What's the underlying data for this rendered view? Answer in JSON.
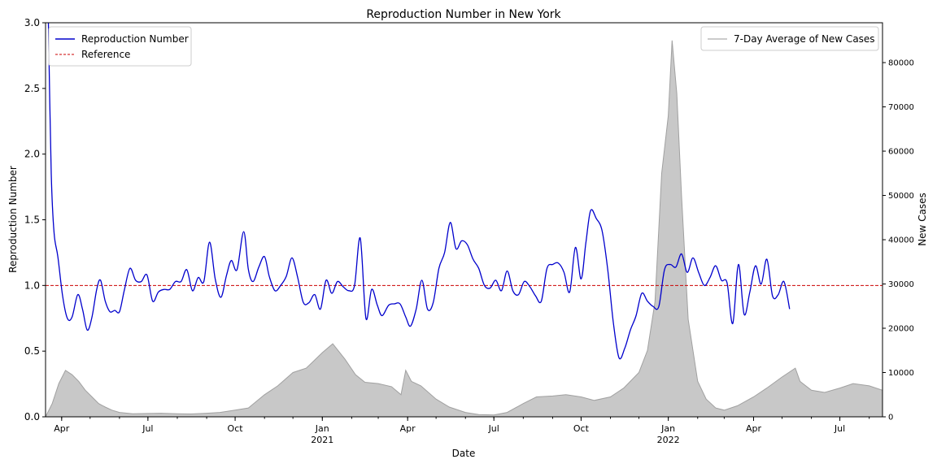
{
  "chart_data": {
    "type": "line",
    "title": "Reproduction Number in New York",
    "xlabel": "Date",
    "ylabel": "Reproduction Number",
    "y2label": "New Cases",
    "x_range": [
      "2020-03-15",
      "2022-08-15"
    ],
    "ylim": [
      0,
      3.0
    ],
    "y2lim": [
      0,
      89000
    ],
    "yticks": [
      0.0,
      0.5,
      1.0,
      1.5,
      2.0,
      2.5,
      3.0
    ],
    "y2ticks": [
      0,
      10000,
      20000,
      30000,
      40000,
      50000,
      60000,
      70000,
      80000
    ],
    "xticks": [
      {
        "date": "2020-04-01",
        "label": "Apr",
        "year": ""
      },
      {
        "date": "2020-07-01",
        "label": "Jul",
        "year": ""
      },
      {
        "date": "2020-10-01",
        "label": "Oct",
        "year": ""
      },
      {
        "date": "2021-01-01",
        "label": "Jan",
        "year": "2021"
      },
      {
        "date": "2021-04-01",
        "label": "Apr",
        "year": ""
      },
      {
        "date": "2021-07-01",
        "label": "Jul",
        "year": ""
      },
      {
        "date": "2021-10-01",
        "label": "Oct",
        "year": ""
      },
      {
        "date": "2022-01-01",
        "label": "Jan",
        "year": "2022"
      },
      {
        "date": "2022-04-01",
        "label": "Apr",
        "year": ""
      },
      {
        "date": "2022-07-01",
        "label": "Jul",
        "year": ""
      }
    ],
    "grid": false,
    "legends": [
      {
        "placement": "top-left",
        "entries": [
          {
            "label": "Reproduction Number",
            "color": "#0000cc",
            "style": "solid"
          },
          {
            "label": "Reference",
            "color": "#cc0000",
            "style": "dashed"
          }
        ]
      },
      {
        "placement": "top-right",
        "entries": [
          {
            "label": "7-Day Average of New Cases",
            "color": "#bbbbbb",
            "style": "solid"
          }
        ]
      }
    ],
    "reference_line": {
      "name": "Reference",
      "y": 1.0,
      "color": "#cc0000"
    },
    "series": [
      {
        "name": "Reproduction Number",
        "axis": "left",
        "color": "#0000cc",
        "points": [
          [
            "2020-03-18",
            3.0
          ],
          [
            "2020-03-21",
            1.85
          ],
          [
            "2020-03-24",
            1.4
          ],
          [
            "2020-03-28",
            1.22
          ],
          [
            "2020-04-02",
            0.92
          ],
          [
            "2020-04-07",
            0.75
          ],
          [
            "2020-04-12",
            0.76
          ],
          [
            "2020-04-18",
            0.93
          ],
          [
            "2020-04-23",
            0.82
          ],
          [
            "2020-04-28",
            0.66
          ],
          [
            "2020-05-03",
            0.76
          ],
          [
            "2020-05-08",
            0.97
          ],
          [
            "2020-05-12",
            1.04
          ],
          [
            "2020-05-17",
            0.88
          ],
          [
            "2020-05-22",
            0.8
          ],
          [
            "2020-05-27",
            0.81
          ],
          [
            "2020-06-01",
            0.8
          ],
          [
            "2020-06-06",
            0.96
          ],
          [
            "2020-06-12",
            1.13
          ],
          [
            "2020-06-18",
            1.04
          ],
          [
            "2020-06-24",
            1.03
          ],
          [
            "2020-06-30",
            1.08
          ],
          [
            "2020-07-06",
            0.88
          ],
          [
            "2020-07-12",
            0.95
          ],
          [
            "2020-07-18",
            0.97
          ],
          [
            "2020-07-24",
            0.97
          ],
          [
            "2020-07-30",
            1.03
          ],
          [
            "2020-08-05",
            1.03
          ],
          [
            "2020-08-11",
            1.12
          ],
          [
            "2020-08-17",
            0.96
          ],
          [
            "2020-08-23",
            1.06
          ],
          [
            "2020-08-29",
            1.03
          ],
          [
            "2020-09-04",
            1.33
          ],
          [
            "2020-09-10",
            1.05
          ],
          [
            "2020-09-16",
            0.91
          ],
          [
            "2020-09-22",
            1.08
          ],
          [
            "2020-09-27",
            1.19
          ],
          [
            "2020-10-03",
            1.12
          ],
          [
            "2020-10-10",
            1.41
          ],
          [
            "2020-10-15",
            1.12
          ],
          [
            "2020-10-20",
            1.03
          ],
          [
            "2020-10-26",
            1.14
          ],
          [
            "2020-11-01",
            1.22
          ],
          [
            "2020-11-06",
            1.07
          ],
          [
            "2020-11-12",
            0.96
          ],
          [
            "2020-11-18",
            1.0
          ],
          [
            "2020-11-24",
            1.07
          ],
          [
            "2020-11-30",
            1.21
          ],
          [
            "2020-12-06",
            1.06
          ],
          [
            "2020-12-12",
            0.87
          ],
          [
            "2020-12-18",
            0.87
          ],
          [
            "2020-12-24",
            0.93
          ],
          [
            "2020-12-30",
            0.82
          ],
          [
            "2021-01-05",
            1.04
          ],
          [
            "2021-01-11",
            0.94
          ],
          [
            "2021-01-17",
            1.03
          ],
          [
            "2021-01-23",
            0.99
          ],
          [
            "2021-01-29",
            0.96
          ],
          [
            "2021-02-04",
            1.0
          ],
          [
            "2021-02-10",
            1.36
          ],
          [
            "2021-02-16",
            0.75
          ],
          [
            "2021-02-22",
            0.97
          ],
          [
            "2021-02-28",
            0.85
          ],
          [
            "2021-03-05",
            0.77
          ],
          [
            "2021-03-12",
            0.85
          ],
          [
            "2021-03-18",
            0.86
          ],
          [
            "2021-03-24",
            0.86
          ],
          [
            "2021-03-30",
            0.76
          ],
          [
            "2021-04-04",
            0.69
          ],
          [
            "2021-04-10",
            0.82
          ],
          [
            "2021-04-16",
            1.04
          ],
          [
            "2021-04-22",
            0.82
          ],
          [
            "2021-04-28",
            0.87
          ],
          [
            "2021-05-04",
            1.13
          ],
          [
            "2021-05-10",
            1.25
          ],
          [
            "2021-05-16",
            1.48
          ],
          [
            "2021-05-22",
            1.28
          ],
          [
            "2021-05-28",
            1.34
          ],
          [
            "2021-06-03",
            1.31
          ],
          [
            "2021-06-09",
            1.2
          ],
          [
            "2021-06-15",
            1.13
          ],
          [
            "2021-06-21",
            1.0
          ],
          [
            "2021-06-27",
            0.98
          ],
          [
            "2021-07-03",
            1.04
          ],
          [
            "2021-07-09",
            0.96
          ],
          [
            "2021-07-15",
            1.11
          ],
          [
            "2021-07-21",
            0.96
          ],
          [
            "2021-07-27",
            0.93
          ],
          [
            "2021-08-02",
            1.03
          ],
          [
            "2021-08-08",
            0.99
          ],
          [
            "2021-08-14",
            0.92
          ],
          [
            "2021-08-20",
            0.88
          ],
          [
            "2021-08-26",
            1.13
          ],
          [
            "2021-09-01",
            1.16
          ],
          [
            "2021-09-07",
            1.17
          ],
          [
            "2021-09-13",
            1.1
          ],
          [
            "2021-09-19",
            0.95
          ],
          [
            "2021-09-25",
            1.29
          ],
          [
            "2021-10-01",
            1.05
          ],
          [
            "2021-10-06",
            1.32
          ],
          [
            "2021-10-11",
            1.57
          ],
          [
            "2021-10-17",
            1.51
          ],
          [
            "2021-10-23",
            1.42
          ],
          [
            "2021-10-29",
            1.13
          ],
          [
            "2021-11-04",
            0.72
          ],
          [
            "2021-11-10",
            0.45
          ],
          [
            "2021-11-16",
            0.52
          ],
          [
            "2021-11-22",
            0.66
          ],
          [
            "2021-11-28",
            0.77
          ],
          [
            "2021-12-04",
            0.94
          ],
          [
            "2021-12-10",
            0.88
          ],
          [
            "2021-12-16",
            0.84
          ],
          [
            "2021-12-22",
            0.84
          ],
          [
            "2021-12-28",
            1.12
          ],
          [
            "2022-01-03",
            1.16
          ],
          [
            "2022-01-09",
            1.14
          ],
          [
            "2022-01-15",
            1.24
          ],
          [
            "2022-01-21",
            1.1
          ],
          [
            "2022-01-27",
            1.21
          ],
          [
            "2022-02-02",
            1.1
          ],
          [
            "2022-02-08",
            1.0
          ],
          [
            "2022-02-14",
            1.06
          ],
          [
            "2022-02-20",
            1.15
          ],
          [
            "2022-02-26",
            1.04
          ],
          [
            "2022-03-04",
            1.02
          ],
          [
            "2022-03-10",
            0.71
          ],
          [
            "2022-03-16",
            1.16
          ],
          [
            "2022-03-22",
            0.78
          ],
          [
            "2022-03-28",
            0.95
          ],
          [
            "2022-04-03",
            1.15
          ],
          [
            "2022-04-09",
            1.01
          ],
          [
            "2022-04-15",
            1.2
          ],
          [
            "2022-04-21",
            0.92
          ],
          [
            "2022-04-27",
            0.93
          ],
          [
            "2022-05-03",
            1.03
          ],
          [
            "2022-05-09",
            0.82
          ]
        ]
      },
      {
        "name": "7-Day Average of New Cases",
        "axis": "right",
        "type": "area",
        "color": "#bbbbbb",
        "points": [
          [
            "2020-03-15",
            0
          ],
          [
            "2020-03-22",
            3000
          ],
          [
            "2020-03-29",
            7500
          ],
          [
            "2020-04-05",
            10500
          ],
          [
            "2020-04-12",
            9500
          ],
          [
            "2020-04-19",
            8000
          ],
          [
            "2020-04-26",
            6000
          ],
          [
            "2020-05-03",
            4500
          ],
          [
            "2020-05-10",
            3000
          ],
          [
            "2020-05-17",
            2200
          ],
          [
            "2020-05-24",
            1500
          ],
          [
            "2020-06-01",
            1000
          ],
          [
            "2020-06-15",
            700
          ],
          [
            "2020-07-01",
            750
          ],
          [
            "2020-07-15",
            800
          ],
          [
            "2020-08-01",
            700
          ],
          [
            "2020-08-15",
            650
          ],
          [
            "2020-09-01",
            800
          ],
          [
            "2020-09-15",
            1000
          ],
          [
            "2020-10-01",
            1500
          ],
          [
            "2020-10-15",
            2000
          ],
          [
            "2020-11-01",
            5000
          ],
          [
            "2020-11-15",
            7000
          ],
          [
            "2020-12-01",
            10000
          ],
          [
            "2020-12-15",
            11000
          ],
          [
            "2021-01-01",
            14500
          ],
          [
            "2021-01-12",
            16500
          ],
          [
            "2021-01-25",
            13000
          ],
          [
            "2021-02-05",
            9500
          ],
          [
            "2021-02-15",
            7800
          ],
          [
            "2021-03-01",
            7500
          ],
          [
            "2021-03-15",
            6800
          ],
          [
            "2021-03-25",
            5000
          ],
          [
            "2021-03-30",
            10500
          ],
          [
            "2021-04-05",
            8000
          ],
          [
            "2021-04-15",
            7000
          ],
          [
            "2021-05-01",
            4000
          ],
          [
            "2021-05-15",
            2200
          ],
          [
            "2021-06-01",
            1000
          ],
          [
            "2021-06-15",
            500
          ],
          [
            "2021-07-01",
            400
          ],
          [
            "2021-07-15",
            1000
          ],
          [
            "2021-08-01",
            3000
          ],
          [
            "2021-08-15",
            4500
          ],
          [
            "2021-09-01",
            4700
          ],
          [
            "2021-09-15",
            5000
          ],
          [
            "2021-10-01",
            4500
          ],
          [
            "2021-10-15",
            3700
          ],
          [
            "2021-11-01",
            4500
          ],
          [
            "2021-11-15",
            6500
          ],
          [
            "2021-12-01",
            10000
          ],
          [
            "2021-12-10",
            15000
          ],
          [
            "2021-12-18",
            26000
          ],
          [
            "2021-12-25",
            55000
          ],
          [
            "2022-01-01",
            68000
          ],
          [
            "2022-01-05",
            85000
          ],
          [
            "2022-01-10",
            73000
          ],
          [
            "2022-01-15",
            50000
          ],
          [
            "2022-01-22",
            22000
          ],
          [
            "2022-02-01",
            8000
          ],
          [
            "2022-02-10",
            4000
          ],
          [
            "2022-02-20",
            2000
          ],
          [
            "2022-03-01",
            1500
          ],
          [
            "2022-03-15",
            2500
          ],
          [
            "2022-04-01",
            4500
          ],
          [
            "2022-04-15",
            6500
          ],
          [
            "2022-05-01",
            9000
          ],
          [
            "2022-05-15",
            11000
          ],
          [
            "2022-05-20",
            8000
          ],
          [
            "2022-06-01",
            6000
          ],
          [
            "2022-06-15",
            5500
          ],
          [
            "2022-07-01",
            6500
          ],
          [
            "2022-07-15",
            7500
          ],
          [
            "2022-08-01",
            7000
          ],
          [
            "2022-08-15",
            6000
          ]
        ]
      }
    ]
  }
}
